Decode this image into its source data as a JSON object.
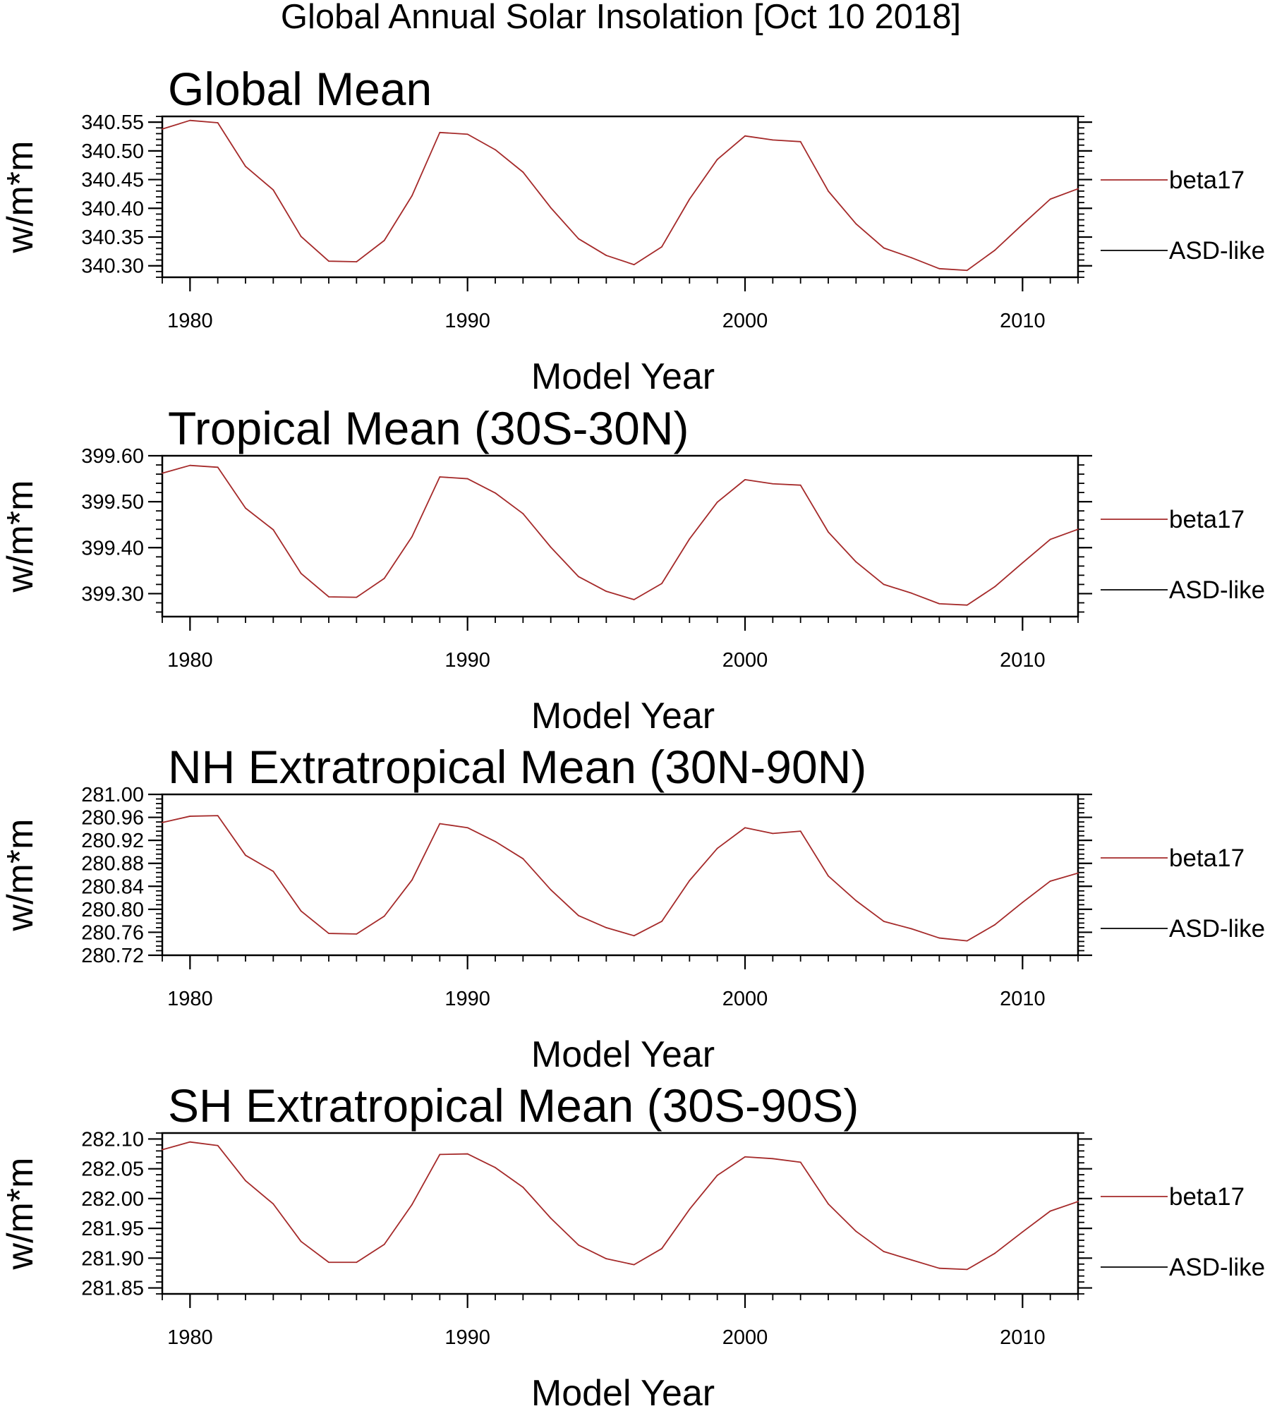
{
  "title": "Global Annual Solar Insolation [Oct 10 2018]",
  "colors": {
    "beta17": "#a52a2a",
    "asd_like": "#000000",
    "axes": "#000000"
  },
  "chart_data": [
    {
      "type": "line",
      "title": "Global Mean",
      "xlabel": "Model Year",
      "ylabel": "w/m*m",
      "xlim": [
        1979,
        2012
      ],
      "ylim": [
        340.28,
        340.56
      ],
      "yticks": [
        340.3,
        340.35,
        340.4,
        340.45,
        340.5,
        340.55
      ],
      "ytick_labels": [
        "340.30",
        "340.35",
        "340.40",
        "340.45",
        "340.50",
        "340.55"
      ],
      "xticks": [
        1980,
        1990,
        2000,
        2010
      ],
      "xtick_labels": [
        "1980",
        "1990",
        "2000",
        "2010"
      ],
      "legend": [
        "beta17",
        "ASD-like"
      ],
      "series": [
        {
          "name": "beta17",
          "x": [
            1979,
            1980,
            1981,
            1982,
            1983,
            1984,
            1985,
            1986,
            1987,
            1988,
            1989,
            1990,
            1991,
            1992,
            1993,
            1994,
            1995,
            1996,
            1997,
            1998,
            1999,
            2000,
            2001,
            2002,
            2003,
            2004,
            2005,
            2006,
            2007,
            2008,
            2009,
            2010,
            2011,
            2012
          ],
          "values": [
            340.538,
            340.553,
            340.549,
            340.473,
            340.432,
            340.351,
            340.308,
            340.307,
            340.344,
            340.422,
            340.532,
            340.529,
            340.502,
            340.463,
            340.401,
            340.347,
            340.318,
            340.302,
            340.333,
            340.416,
            340.485,
            340.526,
            340.519,
            340.516,
            340.43,
            340.373,
            340.331,
            340.314,
            340.295,
            340.292,
            340.327,
            340.372,
            340.416,
            340.434
          ]
        },
        {
          "name": "ASD-like",
          "x": [],
          "values": []
        }
      ]
    },
    {
      "type": "line",
      "title": "Tropical Mean (30S-30N)",
      "xlabel": "Model Year",
      "ylabel": "w/m*m",
      "xlim": [
        1979,
        2012
      ],
      "ylim": [
        399.25,
        399.6
      ],
      "yticks": [
        399.3,
        399.4,
        399.5,
        399.6
      ],
      "ytick_labels": [
        "399.30",
        "399.40",
        "399.50",
        "399.60"
      ],
      "xticks": [
        1980,
        1990,
        2000,
        2010
      ],
      "xtick_labels": [
        "1980",
        "1990",
        "2000",
        "2010"
      ],
      "legend": [
        "beta17",
        "ASD-like"
      ],
      "series": [
        {
          "name": "beta17",
          "x": [
            1979,
            1980,
            1981,
            1982,
            1983,
            1984,
            1985,
            1986,
            1987,
            1988,
            1989,
            1990,
            1991,
            1992,
            1993,
            1994,
            1995,
            1996,
            1997,
            1998,
            1999,
            2000,
            2001,
            2002,
            2003,
            2004,
            2005,
            2006,
            2007,
            2008,
            2009,
            2010,
            2011,
            2012
          ],
          "values": [
            399.562,
            399.579,
            399.575,
            399.486,
            399.439,
            399.344,
            399.293,
            399.292,
            399.333,
            399.424,
            399.554,
            399.55,
            399.519,
            399.474,
            399.401,
            399.337,
            399.305,
            399.287,
            399.322,
            399.419,
            399.499,
            399.548,
            399.539,
            399.536,
            399.434,
            399.369,
            399.32,
            399.301,
            399.278,
            399.275,
            399.315,
            399.367,
            399.418,
            399.44
          ]
        },
        {
          "name": "ASD-like",
          "x": [],
          "values": []
        }
      ]
    },
    {
      "type": "line",
      "title": "NH Extratropical Mean (30N-90N)",
      "xlabel": "Model Year",
      "ylabel": "w/m*m",
      "xlim": [
        1979,
        2012
      ],
      "ylim": [
        280.72,
        281.0
      ],
      "yticks": [
        280.72,
        280.76,
        280.8,
        280.84,
        280.88,
        280.92,
        280.96,
        281.0
      ],
      "ytick_labels": [
        "280.72",
        "280.76",
        "280.80",
        "280.84",
        "280.88",
        "280.92",
        "280.96",
        "281.00"
      ],
      "xticks": [
        1980,
        1990,
        2000,
        2010
      ],
      "xtick_labels": [
        "1980",
        "1990",
        "2000",
        "2010"
      ],
      "legend": [
        "beta17",
        "ASD-like"
      ],
      "series": [
        {
          "name": "beta17",
          "x": [
            1979,
            1980,
            1981,
            1982,
            1983,
            1984,
            1985,
            1986,
            1987,
            1988,
            1989,
            1990,
            1991,
            1992,
            1993,
            1994,
            1995,
            1996,
            1997,
            1998,
            1999,
            2000,
            2001,
            2002,
            2003,
            2004,
            2005,
            2006,
            2007,
            2008,
            2009,
            2010,
            2011,
            2012
          ],
          "values": [
            280.951,
            280.962,
            280.963,
            280.894,
            280.866,
            280.797,
            280.758,
            280.757,
            280.788,
            280.851,
            280.949,
            280.942,
            280.918,
            280.888,
            280.834,
            280.789,
            280.768,
            280.754,
            280.779,
            280.85,
            280.906,
            280.942,
            280.932,
            280.936,
            280.858,
            280.815,
            280.779,
            280.766,
            280.75,
            280.745,
            280.773,
            280.812,
            280.849,
            280.863
          ]
        },
        {
          "name": "ASD-like",
          "x": [],
          "values": []
        }
      ]
    },
    {
      "type": "line",
      "title": "SH Extratropical Mean (30S-90S)",
      "xlabel": "Model Year",
      "ylabel": "w/m*m",
      "xlim": [
        1979,
        2012
      ],
      "ylim": [
        281.84,
        282.11
      ],
      "yticks": [
        281.85,
        281.9,
        281.95,
        282.0,
        282.05,
        282.1
      ],
      "ytick_labels": [
        "281.85",
        "281.90",
        "281.95",
        "282.00",
        "282.05",
        "282.10"
      ],
      "xticks": [
        1980,
        1990,
        2000,
        2010
      ],
      "xtick_labels": [
        "1980",
        "1990",
        "2000",
        "2010"
      ],
      "legend": [
        "beta17",
        "ASD-like"
      ],
      "series": [
        {
          "name": "beta17",
          "x": [
            1979,
            1980,
            1981,
            1982,
            1983,
            1984,
            1985,
            1986,
            1987,
            1988,
            1989,
            1990,
            1991,
            1992,
            1993,
            1994,
            1995,
            1996,
            1997,
            1998,
            1999,
            2000,
            2001,
            2002,
            2003,
            2004,
            2005,
            2006,
            2007,
            2008,
            2009,
            2010,
            2011,
            2012
          ],
          "values": [
            282.082,
            282.095,
            282.089,
            282.03,
            281.991,
            281.928,
            281.893,
            281.893,
            281.923,
            281.99,
            282.074,
            282.075,
            282.052,
            282.019,
            281.967,
            281.922,
            281.899,
            281.889,
            281.916,
            281.982,
            282.039,
            282.07,
            282.067,
            282.061,
            281.991,
            281.945,
            281.911,
            281.897,
            281.883,
            281.881,
            281.908,
            281.944,
            281.979,
            281.995
          ]
        },
        {
          "name": "ASD-like",
          "x": [],
          "values": []
        }
      ]
    }
  ]
}
